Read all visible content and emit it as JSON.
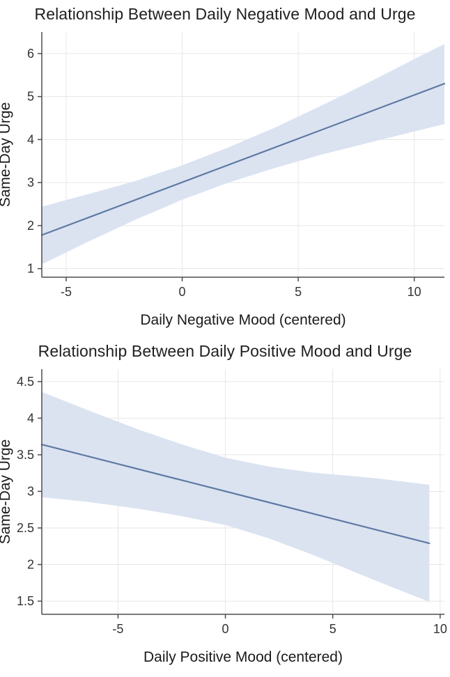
{
  "chart_data": [
    {
      "type": "line",
      "title": "Relationship Between Daily Negative Mood and Urge",
      "xlabel": "Daily Negative Mood (centered)",
      "ylabel": "Same-Day Urge",
      "xlim": [
        -6.05,
        11.3
      ],
      "ylim": [
        0.8,
        6.5
      ],
      "xticks": [
        -5,
        0,
        5,
        10
      ],
      "yticks": [
        1,
        2,
        3,
        4,
        5,
        6
      ],
      "grid": true,
      "legend_position": "none",
      "series": [
        {
          "name": "fitted-regression-line",
          "x": [
            -6.05,
            11.3
          ],
          "y": [
            1.78,
            5.3
          ]
        }
      ],
      "band": {
        "name": "confidence-band",
        "x": [
          -6.05,
          -4,
          -2,
          0,
          2,
          4,
          6,
          8,
          10,
          11.3
        ],
        "lower": [
          1.1,
          1.64,
          2.14,
          2.6,
          3.0,
          3.34,
          3.65,
          3.92,
          4.19,
          4.36
        ],
        "upper": [
          2.44,
          2.74,
          3.04,
          3.4,
          3.82,
          4.28,
          4.79,
          5.32,
          5.87,
          6.22
        ]
      },
      "colors": {
        "line": "#5f7aa3",
        "band": "#dbe3f1",
        "grid": "#e6e6e6",
        "axis": "#4d4d4d",
        "tick": "#333333",
        "text": "#1a1a1a"
      }
    },
    {
      "type": "line",
      "title": "Relationship Between Daily Positive Mood and Urge",
      "xlabel": "Daily Positive Mood (centered)",
      "ylabel": "Same-Day Urge",
      "xlim": [
        -8.55,
        10.2
      ],
      "ylim": [
        1.32,
        4.67
      ],
      "xticks": [
        -5,
        0,
        5,
        10
      ],
      "yticks": [
        1.5,
        2,
        2.5,
        3,
        3.5,
        4,
        4.5
      ],
      "grid": true,
      "legend_position": "none",
      "series": [
        {
          "name": "fitted-regression-line",
          "x": [
            -8.55,
            9.5
          ],
          "y": [
            3.64,
            2.29
          ]
        }
      ],
      "band": {
        "name": "confidence-band",
        "x": [
          -8.55,
          -6.5,
          -4,
          -2,
          0,
          2,
          4,
          7,
          9.5
        ],
        "lower": [
          2.92,
          2.86,
          2.76,
          2.66,
          2.54,
          2.36,
          2.14,
          1.78,
          1.49
        ],
        "upper": [
          4.36,
          4.12,
          3.84,
          3.64,
          3.46,
          3.34,
          3.26,
          3.18,
          3.09
        ]
      },
      "colors": {
        "line": "#5f7aa3",
        "band": "#dbe3f1",
        "grid": "#e6e6e6",
        "axis": "#4d4d4d",
        "tick": "#333333",
        "text": "#1a1a1a"
      }
    }
  ]
}
